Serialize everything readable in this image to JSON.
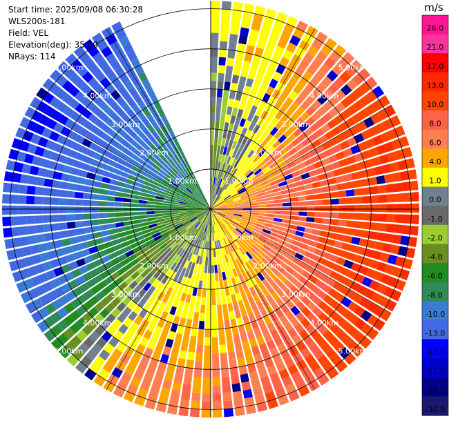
{
  "chart_data": {
    "type": "heatmap",
    "projection": "polar-ppi",
    "info": {
      "start_time": "Start time: 2025/09/08 06:30:28",
      "instrument": "WLS200s-181",
      "field": "Field: VEL",
      "elevation": "Elevation(deg): 35.00",
      "nrays": "NRays: 114"
    },
    "rings_km": [
      1,
      2,
      3,
      4,
      5
    ],
    "ring_labels": [
      "1.00km",
      "2.00km",
      "3.00km",
      "4.00km",
      "5.00km"
    ],
    "max_range_km": 5.2,
    "crosshair": true,
    "missing_sector_deg": [
      335,
      360
    ],
    "azimuth_bins_deg": [
      0,
      30,
      60,
      90,
      120,
      150,
      180,
      210,
      240,
      270,
      300,
      330
    ],
    "range_bins_km": [
      0.5,
      1.5,
      2.5,
      3.5,
      4.5
    ],
    "velocity_ms": [
      [
        -2,
        -3,
        -1,
        0,
        2
      ],
      [
        0,
        1,
        2,
        4,
        5
      ],
      [
        4,
        6,
        8,
        10,
        12
      ],
      [
        6,
        8,
        10,
        12,
        14
      ],
      [
        5,
        7,
        8,
        10,
        13
      ],
      [
        4,
        5,
        6,
        8,
        10
      ],
      [
        -1,
        2,
        4,
        5,
        7
      ],
      [
        -2,
        0,
        3,
        4,
        6
      ],
      [
        -3,
        -4,
        -6,
        -8,
        -10
      ],
      [
        -4,
        -6,
        -8,
        -10,
        -12
      ],
      [
        -6,
        -8,
        -10,
        -11,
        -13
      ],
      [
        -6,
        -8,
        -9,
        -10,
        -12
      ]
    ],
    "colorbar": {
      "unit": "m/s",
      "ticks": [
        "26.0",
        "21.0",
        "17.0",
        "13.0",
        "10.0",
        "8.0",
        "6.0",
        "4.0",
        "1.0",
        "0.0",
        "-1.0",
        "-2.0",
        "-4.0",
        "-6.0",
        "-8.0",
        "-10.0",
        "-13.0",
        "-17.0",
        "-21.0",
        "-26.0",
        "-30.0"
      ],
      "bins": [
        {
          "min": 26,
          "max": 30,
          "color": "#ff1493"
        },
        {
          "min": 21,
          "max": 26,
          "color": "#ff3399"
        },
        {
          "min": 17,
          "max": 21,
          "color": "#ff0000"
        },
        {
          "min": 13,
          "max": 17,
          "color": "#ff2a00"
        },
        {
          "min": 10,
          "max": 13,
          "color": "#ff4500"
        },
        {
          "min": 8,
          "max": 10,
          "color": "#ff6347"
        },
        {
          "min": 6,
          "max": 8,
          "color": "#ff7f50"
        },
        {
          "min": 4,
          "max": 6,
          "color": "#ffa500"
        },
        {
          "min": 1,
          "max": 4,
          "color": "#ffff00"
        },
        {
          "min": 0,
          "max": 1,
          "color": "#708090"
        },
        {
          "min": -1,
          "max": 0,
          "color": "#696969"
        },
        {
          "min": -2,
          "max": -1,
          "color": "#9acd32"
        },
        {
          "min": -4,
          "max": -2,
          "color": "#6b8e23"
        },
        {
          "min": -6,
          "max": -4,
          "color": "#228b22"
        },
        {
          "min": -8,
          "max": -6,
          "color": "#2e8b57"
        },
        {
          "min": -10,
          "max": -8,
          "color": "#3a7bd5"
        },
        {
          "min": -13,
          "max": -10,
          "color": "#4169e1"
        },
        {
          "min": -17,
          "max": -13,
          "color": "#0000ff"
        },
        {
          "min": -21,
          "max": -17,
          "color": "#0000cd"
        },
        {
          "min": -26,
          "max": -21,
          "color": "#00008b"
        },
        {
          "min": -30,
          "max": -26,
          "color": "#191970"
        }
      ]
    }
  }
}
